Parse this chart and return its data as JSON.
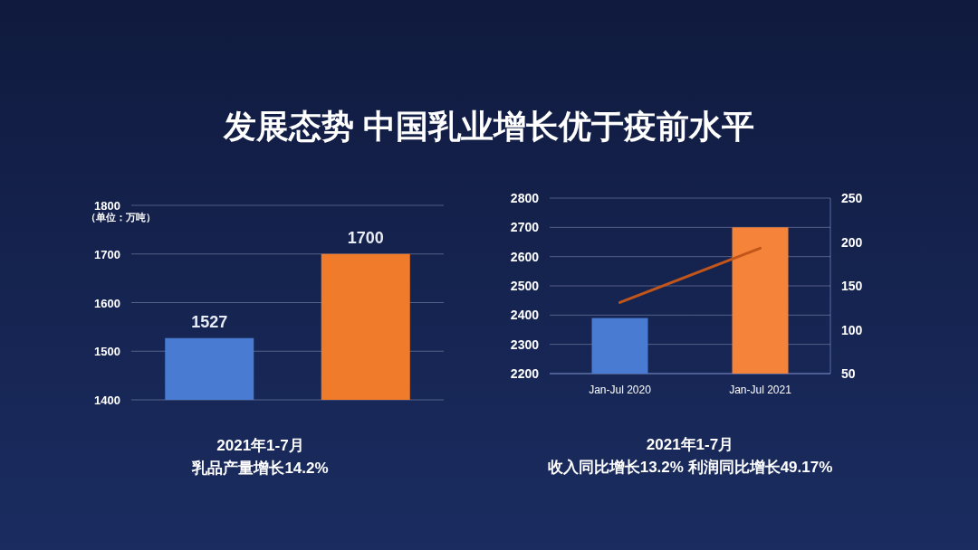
{
  "chart_data": [
    {
      "type": "bar",
      "title": "发展态势 中国乳业增长优于疫前水平",
      "ylabel": "（单位：万吨）",
      "categories": [
        null,
        null
      ],
      "values": [
        1527,
        1700
      ],
      "colors": [
        "#4a7bd3",
        "#ef7b2b"
      ],
      "value_labels": [
        "1527",
        "1700"
      ],
      "ylim": [
        1400,
        1800
      ],
      "yticks": [
        1400,
        1500,
        1600,
        1700,
        1800
      ],
      "grid": "y",
      "annotations": [
        "2021年1-7月",
        "乳品产量增长14.2%"
      ]
    },
    {
      "type": "bar",
      "categories": [
        "Jan-Jul 2020",
        "Jan-Jul 2021"
      ],
      "series": [
        {
          "type": "bar",
          "colors": [
            "#4a7bd3",
            "#f5843a"
          ],
          "values": [
            2390,
            2700
          ]
        },
        {
          "type": "line",
          "axis": "y2",
          "color": "#c2561a",
          "values": [
            131,
            193
          ]
        }
      ],
      "ylim": [
        2200,
        2800
      ],
      "yticks": [
        2200,
        2300,
        2400,
        2500,
        2600,
        2700,
        2800
      ],
      "y2lim": [
        50,
        250
      ],
      "y2ticks": [
        50,
        100,
        150,
        200,
        250
      ],
      "grid": "y",
      "annotations": [
        "2021年1-7月",
        "收入同比增长13.2% 利润同比增长49.17%"
      ]
    }
  ]
}
